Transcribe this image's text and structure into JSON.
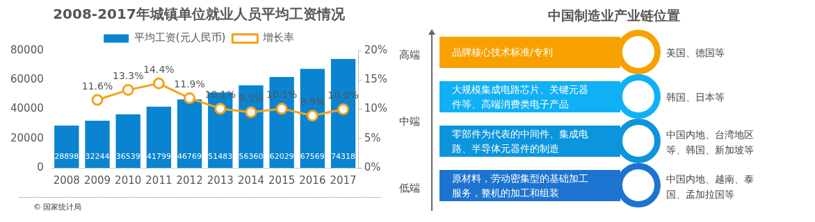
{
  "chart_data": [
    {
      "type": "bar",
      "title": "2008-2017年城镇单位就业人员平均工资情况",
      "categories": [
        "2008",
        "2009",
        "2010",
        "2011",
        "2012",
        "2013",
        "2014",
        "2015",
        "2016",
        "2017"
      ],
      "series": [
        {
          "name": "平均工资(元人民币)",
          "type": "bar",
          "color": "#0a84d0",
          "values": [
            28898,
            32244,
            36539,
            41799,
            46769,
            51483,
            56360,
            62029,
            67569,
            74318
          ],
          "value_labels": [
            "28898",
            "32244",
            "36539",
            "41799",
            "46769",
            "51483",
            "56360",
            "62029",
            "67569",
            "74318"
          ]
        },
        {
          "name": "增长率",
          "type": "line",
          "axis": "y2",
          "color": "#f5a21b",
          "marker": "circle",
          "values": [
            null,
            11.6,
            13.3,
            14.4,
            11.9,
            10.1,
            9.5,
            10.1,
            8.9,
            10.0
          ],
          "value_labels": [
            null,
            "11.6%",
            "13.3%",
            "14.4%",
            "11.9%",
            "10.1%",
            "9.5%",
            "10.1%",
            "8.9%",
            "10.0%"
          ]
        }
      ],
      "ylim": [
        0,
        80000
      ],
      "yticks": [
        0,
        20000,
        40000,
        60000,
        80000
      ],
      "y2lim": [
        0,
        20
      ],
      "y2ticks": [
        {
          "value": 0,
          "label": "0%"
        },
        {
          "value": 5,
          "label": "5%"
        },
        {
          "value": 10,
          "label": "10%"
        },
        {
          "value": 15,
          "label": "15%"
        },
        {
          "value": 20,
          "label": "20%"
        }
      ],
      "grid": false,
      "legend": "top",
      "annotations": [
        "© 国家统计局"
      ]
    },
    {
      "type": "other",
      "title": "中国制造业产业链位置",
      "annotations": [
        "高端",
        "中端",
        "低端",
        "品牌核心技术标准/专利",
        "大规模集成电路芯片、关键元器件等、高端消费类电子产品",
        "零部件为代表的中间件、集成电路、半导体元器件的制造",
        "原材料，劳动密集型的基础加工服务，整机的加工和组装",
        "美国、德国等",
        "韩国、日本等",
        "中国内地、台湾地区等、韩国、新加坡等",
        "中国内地、越南、泰国、孟加拉国等"
      ]
    }
  ]
}
